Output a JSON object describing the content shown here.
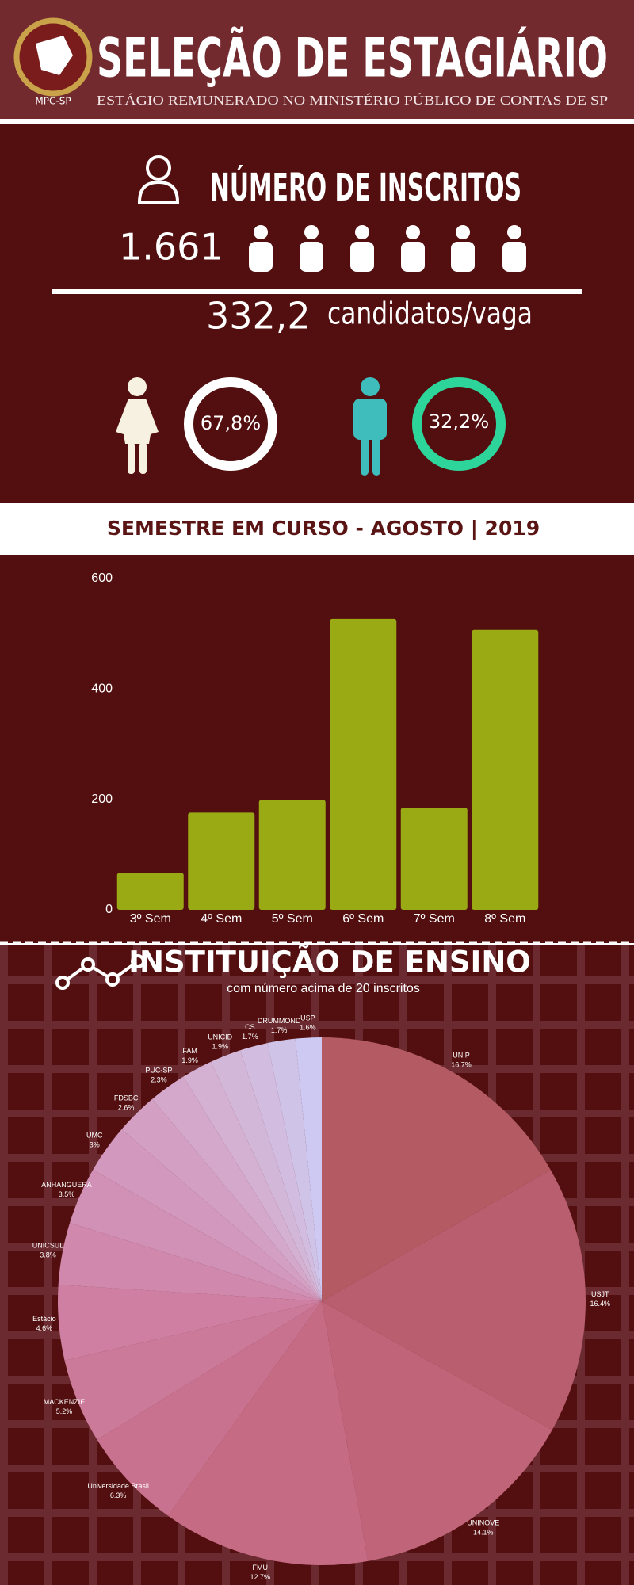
{
  "header": {
    "title": "SELEÇÃO DE ESTAGIÁRIO",
    "subtitle": "ESTÁGIO REMUNERADO NO MINISTÉRIO PÚBLICO DE CONTAS DE SP",
    "logo_text": "MPC-SP"
  },
  "inscritos": {
    "title": "NÚMERO DE INSCRITOS",
    "total": "1.661",
    "ratio": "332,2",
    "ratio_label": "candidatos/vaga",
    "women": "67,8%",
    "men": "32,2%"
  },
  "chart_data": [
    {
      "type": "bar",
      "title": "SEMESTRE EM CURSO - AGOSTO | 2019",
      "categories": [
        "3º Sem",
        "4º Sem",
        "5º Sem",
        "6º Sem",
        "7º Sem",
        "8º Sem"
      ],
      "values": [
        67,
        176,
        199,
        527,
        185,
        507
      ],
      "color": "#9aaa14",
      "ylim": [
        0,
        600
      ],
      "yticks": [
        0,
        200,
        400,
        600
      ],
      "grid": false
    },
    {
      "type": "pie",
      "title": "INSTITUIÇÃO DE ENSINO",
      "subtitle": "com número acima de 20 inscritos",
      "categories": [
        "UNIP",
        "USJT",
        "UNINOVE",
        "FMU",
        "Universidade Brasil",
        "MACKENZIE",
        "Estácio",
        "UNICSUL",
        "ANHANGUERA",
        "UMC",
        "FDSBC",
        "PUC-SP",
        "FAM",
        "UNICID",
        "CS",
        "DRUMMOND",
        "USP"
      ],
      "values": [
        16.7,
        16.4,
        14.1,
        12.7,
        6.3,
        5.2,
        4.6,
        3.8,
        3.5,
        3,
        2.6,
        2.3,
        1.9,
        1.9,
        1.7,
        1.7,
        1.6
      ],
      "value_labels": [
        "16.7%",
        "16.4%",
        "14.1%",
        "12.7%",
        "6.3%",
        "5.2%",
        "4.6%",
        "3.8%",
        "3.5%",
        "3%",
        "2.6%",
        "2.3%",
        "1.9%",
        "1.9%",
        "1.7%",
        "1.7%",
        "1.6%"
      ],
      "colors": [
        "#b35a63",
        "#b85e6e",
        "#c0647a",
        "#c66b84",
        "#c9728f",
        "#cc7a99",
        "#cf80a2",
        "#d088ac",
        "#d190b5",
        "#d298bd",
        "#d3a0c4",
        "#d4a8cb",
        "#d4b0d2",
        "#d3b7d9",
        "#d2bde0",
        "#d0c3e8",
        "#cec9f2"
      ]
    }
  ]
}
